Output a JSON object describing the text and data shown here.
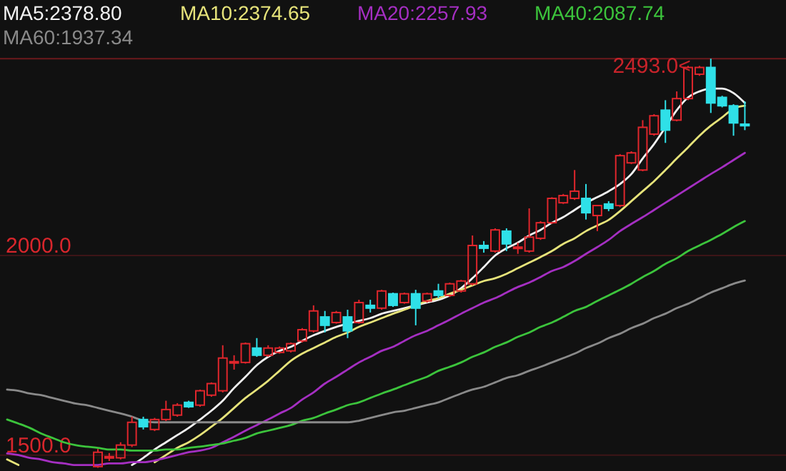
{
  "chart_data": {
    "type": "candlestick",
    "categories": [
      null,
      null,
      null,
      null,
      null,
      null,
      null,
      null,
      null,
      null,
      null,
      null,
      null,
      null,
      null,
      null,
      null,
      null,
      null,
      null,
      null,
      null,
      null,
      null,
      null,
      null,
      null,
      null,
      null,
      null,
      null,
      null,
      null,
      null,
      null,
      null,
      null,
      null,
      null,
      null,
      null,
      null,
      null,
      null,
      null,
      null,
      null,
      null,
      null,
      null,
      null,
      null,
      null,
      null,
      null,
      null,
      null,
      null,
      null,
      null,
      null,
      null,
      null,
      null,
      null,
      null,
      null,
      null,
      null
    ],
    "ohlc": [
      null,
      null,
      null,
      null,
      null,
      null,
      null,
      null,
      [
        1471,
        1515,
        1468,
        1507
      ],
      [
        1493,
        1505,
        1485,
        1496
      ],
      [
        1493,
        1532,
        1489,
        1525
      ],
      [
        1525,
        1596,
        1520,
        1582
      ],
      [
        1589,
        1596,
        1564,
        1571
      ],
      [
        1564,
        1593,
        1560,
        1589
      ],
      [
        1589,
        1636,
        1585,
        1614
      ],
      [
        1600,
        1630,
        1596,
        1625
      ],
      [
        1632,
        1636,
        1618,
        1621
      ],
      [
        1625,
        1664,
        1621,
        1661
      ],
      [
        1650,
        1682,
        1646,
        1679
      ],
      [
        1661,
        1775,
        1657,
        1743
      ],
      [
        1732,
        1750,
        1714,
        1734
      ],
      [
        1732,
        1782,
        1729,
        1779
      ],
      [
        1768,
        1793,
        1746,
        1750
      ],
      [
        1750,
        1775,
        1746,
        1768
      ],
      [
        1757,
        1772,
        1754,
        1768
      ],
      [
        1761,
        1782,
        1757,
        1779
      ],
      [
        1786,
        1818,
        1782,
        1814
      ],
      [
        1811,
        1875,
        1807,
        1861
      ],
      [
        1846,
        1861,
        1807,
        1825
      ],
      [
        1832,
        1861,
        1829,
        1857
      ],
      [
        1846,
        1864,
        1793,
        1811
      ],
      [
        1832,
        1889,
        1829,
        1882
      ],
      [
        1875,
        1889,
        1857,
        1868
      ],
      [
        1868,
        1914,
        1864,
        1911
      ],
      [
        1904,
        1907,
        1871,
        1875
      ],
      [
        1882,
        1907,
        1879,
        1904
      ],
      [
        1904,
        1914,
        1825,
        1868
      ],
      [
        1886,
        1907,
        1882,
        1904
      ],
      [
        1911,
        1929,
        1893,
        1900
      ],
      [
        1900,
        1932,
        1896,
        1929
      ],
      [
        1911,
        1939,
        1907,
        1936
      ],
      [
        1929,
        2050,
        1925,
        2025
      ],
      [
        2025,
        2036,
        2007,
        2018
      ],
      [
        2011,
        2068,
        2007,
        2064
      ],
      [
        2061,
        2068,
        2011,
        2029
      ],
      [
        2018,
        2032,
        2004,
        2021
      ],
      [
        2011,
        2118,
        2007,
        2046
      ],
      [
        2043,
        2086,
        2039,
        2082
      ],
      [
        2082,
        2146,
        2079,
        2143
      ],
      [
        2132,
        2154,
        2129,
        2150
      ],
      [
        2143,
        2214,
        2139,
        2161
      ],
      [
        2143,
        2179,
        2090,
        2107
      ],
      [
        2100,
        2125,
        2061,
        2125
      ],
      [
        2129,
        2136,
        2111,
        2118
      ],
      [
        2125,
        2254,
        2121,
        2250
      ],
      [
        2232,
        2261,
        2229,
        2257
      ],
      [
        2214,
        2339,
        2211,
        2321
      ],
      [
        2304,
        2354,
        2300,
        2350
      ],
      [
        2364,
        2389,
        2282,
        2314
      ],
      [
        2339,
        2411,
        2336,
        2393
      ],
      [
        2393,
        2475,
        2389,
        2471
      ],
      [
        2454,
        2475,
        2450,
        2471
      ],
      [
        2471,
        2493,
        2357,
        2382
      ],
      [
        2396,
        2400,
        2371,
        2375
      ],
      [
        2375,
        2379,
        2300,
        2332
      ],
      [
        2329,
        2386,
        2314,
        2325
      ],
      null,
      null,
      null
    ],
    "series": [
      {
        "type": "line",
        "name": "MA5:2378.80",
        "color": "#f2f2f2",
        "values": [
          null,
          null,
          null,
          null,
          null,
          null,
          null,
          null,
          null,
          null,
          null,
          1475,
          1493,
          1514,
          1532,
          1550,
          1568,
          1589,
          1611,
          1636,
          1668,
          1696,
          1725,
          1746,
          1761,
          1771,
          1786,
          1800,
          1811,
          1821,
          1829,
          1836,
          1843,
          1854,
          1861,
          1868,
          1875,
          1882,
          1889,
          1900,
          1918,
          1943,
          1971,
          2000,
          2018,
          2032,
          2050,
          2064,
          2082,
          2096,
          2114,
          2132,
          2146,
          2161,
          2179,
          2204,
          2243,
          2279,
          2321,
          2364,
          2396,
          2411,
          2418,
          2418,
          2407,
          2382,
          null,
          null,
          null
        ]
      },
      {
        "type": "line",
        "name": "MA10:2374.65",
        "color": "#e6e37a",
        "values": [
          1489,
          1475,
          null,
          null,
          null,
          null,
          null,
          null,
          null,
          null,
          null,
          null,
          null,
          1482,
          1500,
          1518,
          1532,
          1550,
          1571,
          1593,
          1618,
          1643,
          1664,
          1686,
          1711,
          1736,
          1754,
          1768,
          1782,
          1796,
          1807,
          1821,
          1832,
          1843,
          1854,
          1864,
          1875,
          1886,
          1893,
          1904,
          1914,
          1925,
          1936,
          1943,
          1954,
          1968,
          1982,
          1996,
          2011,
          2029,
          2043,
          2061,
          2075,
          2089,
          2111,
          2136,
          2161,
          2186,
          2214,
          2243,
          2271,
          2300,
          2325,
          2346,
          2368,
          2375,
          null,
          null,
          null
        ]
      },
      {
        "type": "line",
        "name": "MA20:2257.93",
        "color": "#a52fc2",
        "values": [
          1504,
          1500,
          1493,
          1489,
          1482,
          1479,
          1475,
          1475,
          1475,
          1479,
          1479,
          1482,
          1482,
          1486,
          1493,
          1500,
          1507,
          1511,
          1518,
          1532,
          1546,
          1561,
          1575,
          1589,
          1604,
          1618,
          1639,
          1657,
          1679,
          1696,
          1714,
          1732,
          1746,
          1761,
          1771,
          1786,
          1800,
          1811,
          1825,
          1839,
          1854,
          1868,
          1882,
          1893,
          1907,
          1921,
          1932,
          1946,
          1961,
          1971,
          1986,
          2004,
          2021,
          2039,
          2061,
          2079,
          2096,
          2114,
          2132,
          2150,
          2168,
          2186,
          2204,
          2221,
          2239,
          2257,
          null,
          null,
          null
        ]
      },
      {
        "type": "line",
        "name": "MA40:2087.74",
        "color": "#3cc43c",
        "values": [
          1589,
          1579,
          1568,
          1554,
          1543,
          1532,
          1525,
          1521,
          1518,
          1514,
          1514,
          1511,
          1511,
          1511,
          1514,
          1514,
          1518,
          1521,
          1525,
          1529,
          1536,
          1543,
          1554,
          1561,
          1568,
          1575,
          1586,
          1593,
          1604,
          1614,
          1625,
          1632,
          1643,
          1654,
          1664,
          1675,
          1686,
          1696,
          1711,
          1721,
          1732,
          1746,
          1757,
          1771,
          1782,
          1796,
          1807,
          1821,
          1832,
          1846,
          1861,
          1871,
          1886,
          1900,
          1914,
          1929,
          1946,
          1961,
          1979,
          1993,
          2011,
          2025,
          2039,
          2054,
          2071,
          2086,
          null,
          null,
          null
        ]
      },
      {
        "type": "line",
        "name": "MA60:1937.34",
        "color": "#8a8a8a",
        "values": [
          1664,
          1661,
          1654,
          1650,
          1643,
          1636,
          1629,
          1625,
          1618,
          1611,
          1604,
          1596,
          1586,
          1582,
          1582,
          1582,
          1582,
          1582,
          1582,
          1582,
          1582,
          1582,
          1582,
          1582,
          1582,
          1582,
          1582,
          1582,
          1582,
          1582,
          1582,
          1586,
          1593,
          1600,
          1607,
          1611,
          1618,
          1625,
          1632,
          1643,
          1654,
          1664,
          1671,
          1682,
          1693,
          1700,
          1711,
          1721,
          1732,
          1743,
          1754,
          1768,
          1779,
          1793,
          1804,
          1818,
          1829,
          1843,
          1854,
          1868,
          1879,
          1893,
          1907,
          1918,
          1929,
          1937,
          null,
          null,
          null
        ]
      }
    ],
    "ylim": [
      1460,
      2640
    ],
    "yticks": [
      {
        "value": 1500,
        "label": "1500.0"
      },
      {
        "value": 2000,
        "label": "2000.0"
      }
    ],
    "ref_lines": [
      {
        "axis": "y",
        "value": 2493,
        "label": "2493.0<",
        "color": "#c8232a"
      }
    ],
    "legend": "top left",
    "tick_labels": "y"
  }
}
